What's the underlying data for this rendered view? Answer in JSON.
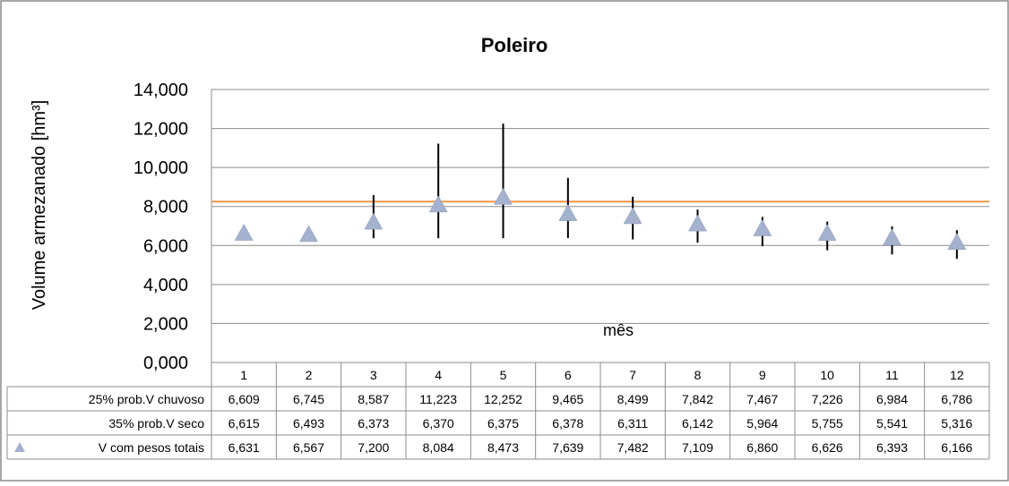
{
  "chart_data": {
    "type": "scatter",
    "title": "Poleiro",
    "ylabel": "Volume  armezanado [hm³]",
    "xlabel": "mês",
    "categories": [
      "1",
      "2",
      "3",
      "4",
      "5",
      "6",
      "7",
      "8",
      "9",
      "10",
      "11",
      "12"
    ],
    "ylim": [
      0,
      14000
    ],
    "yticks": [
      "0,000",
      "2,000",
      "4,000",
      "6,000",
      "8,000",
      "10,000",
      "12,000",
      "14,000"
    ],
    "grid": true,
    "reference_line": {
      "value": 8250,
      "color": "#F79646"
    },
    "series": [
      {
        "name": "25% prob.V chuvoso",
        "role": "error-bar-upper",
        "values": [
          6609,
          6745,
          8587,
          11223,
          12252,
          9465,
          8499,
          7842,
          7467,
          7226,
          6984,
          6786
        ],
        "labels": [
          "6,609",
          "6,745",
          "8,587",
          "11,223",
          "12,252",
          "9,465",
          "8,499",
          "7,842",
          "7,467",
          "7,226",
          "6,984",
          "6,786"
        ]
      },
      {
        "name": "35% prob.V seco",
        "role": "error-bar-lower",
        "values": [
          6615,
          6493,
          6373,
          6370,
          6375,
          6378,
          6311,
          6142,
          5964,
          5755,
          5541,
          5316
        ],
        "labels": [
          "6,615",
          "6,493",
          "6,373",
          "6,370",
          "6,375",
          "6,378",
          "6,311",
          "6,142",
          "5,964",
          "5,755",
          "5,541",
          "5,316"
        ]
      },
      {
        "name": "V com pesos totais",
        "role": "marker",
        "marker": "triangle",
        "color": "#A4B1CF",
        "values": [
          6631,
          6567,
          7200,
          8084,
          8473,
          7639,
          7482,
          7109,
          6860,
          6626,
          6393,
          6166
        ],
        "labels": [
          "6,631",
          "6,567",
          "7,200",
          "8,084",
          "8,473",
          "7,639",
          "7,482",
          "7,109",
          "6,860",
          "6,626",
          "6,393",
          "6,166"
        ]
      }
    ]
  }
}
